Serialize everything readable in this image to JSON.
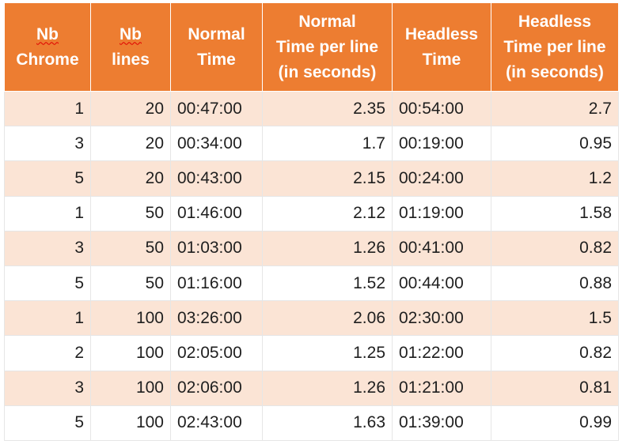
{
  "table": {
    "headers": [
      [
        "Nb",
        "Chrome"
      ],
      [
        "Nb",
        "lines"
      ],
      [
        "Normal",
        "Time"
      ],
      [
        "Normal",
        "Time per line",
        "(in seconds)"
      ],
      [
        "Headless",
        "Time"
      ],
      [
        "Headless",
        "Time per line",
        "(in seconds)"
      ]
    ],
    "rows": [
      [
        "1",
        "20",
        "00:47:00",
        "2.35",
        "00:54:00",
        "2.7"
      ],
      [
        "3",
        "20",
        "00:34:00",
        "1.7",
        "00:19:00",
        "0.95"
      ],
      [
        "5",
        "20",
        "00:43:00",
        "2.15",
        "00:24:00",
        "1.2"
      ],
      [
        "1",
        "50",
        "01:46:00",
        "2.12",
        "01:19:00",
        "1.58"
      ],
      [
        "3",
        "50",
        "01:03:00",
        "1.26",
        "00:41:00",
        "0.82"
      ],
      [
        "5",
        "50",
        "01:16:00",
        "1.52",
        "00:44:00",
        "0.88"
      ],
      [
        "1",
        "100",
        "03:26:00",
        "2.06",
        "02:30:00",
        "1.5"
      ],
      [
        "2",
        "100",
        "02:05:00",
        "1.25",
        "01:22:00",
        "0.82"
      ],
      [
        "3",
        "100",
        "02:06:00",
        "1.26",
        "01:21:00",
        "0.81"
      ],
      [
        "5",
        "100",
        "02:43:00",
        "1.63",
        "01:39:00",
        "0.99"
      ]
    ]
  },
  "colors": {
    "header_bg": "#ed7d31",
    "header_text": "#ffffff",
    "band_row_bg": "#fbe4d5",
    "plain_row_bg": "#ffffff",
    "spellcheck_underline": "#e00000"
  }
}
